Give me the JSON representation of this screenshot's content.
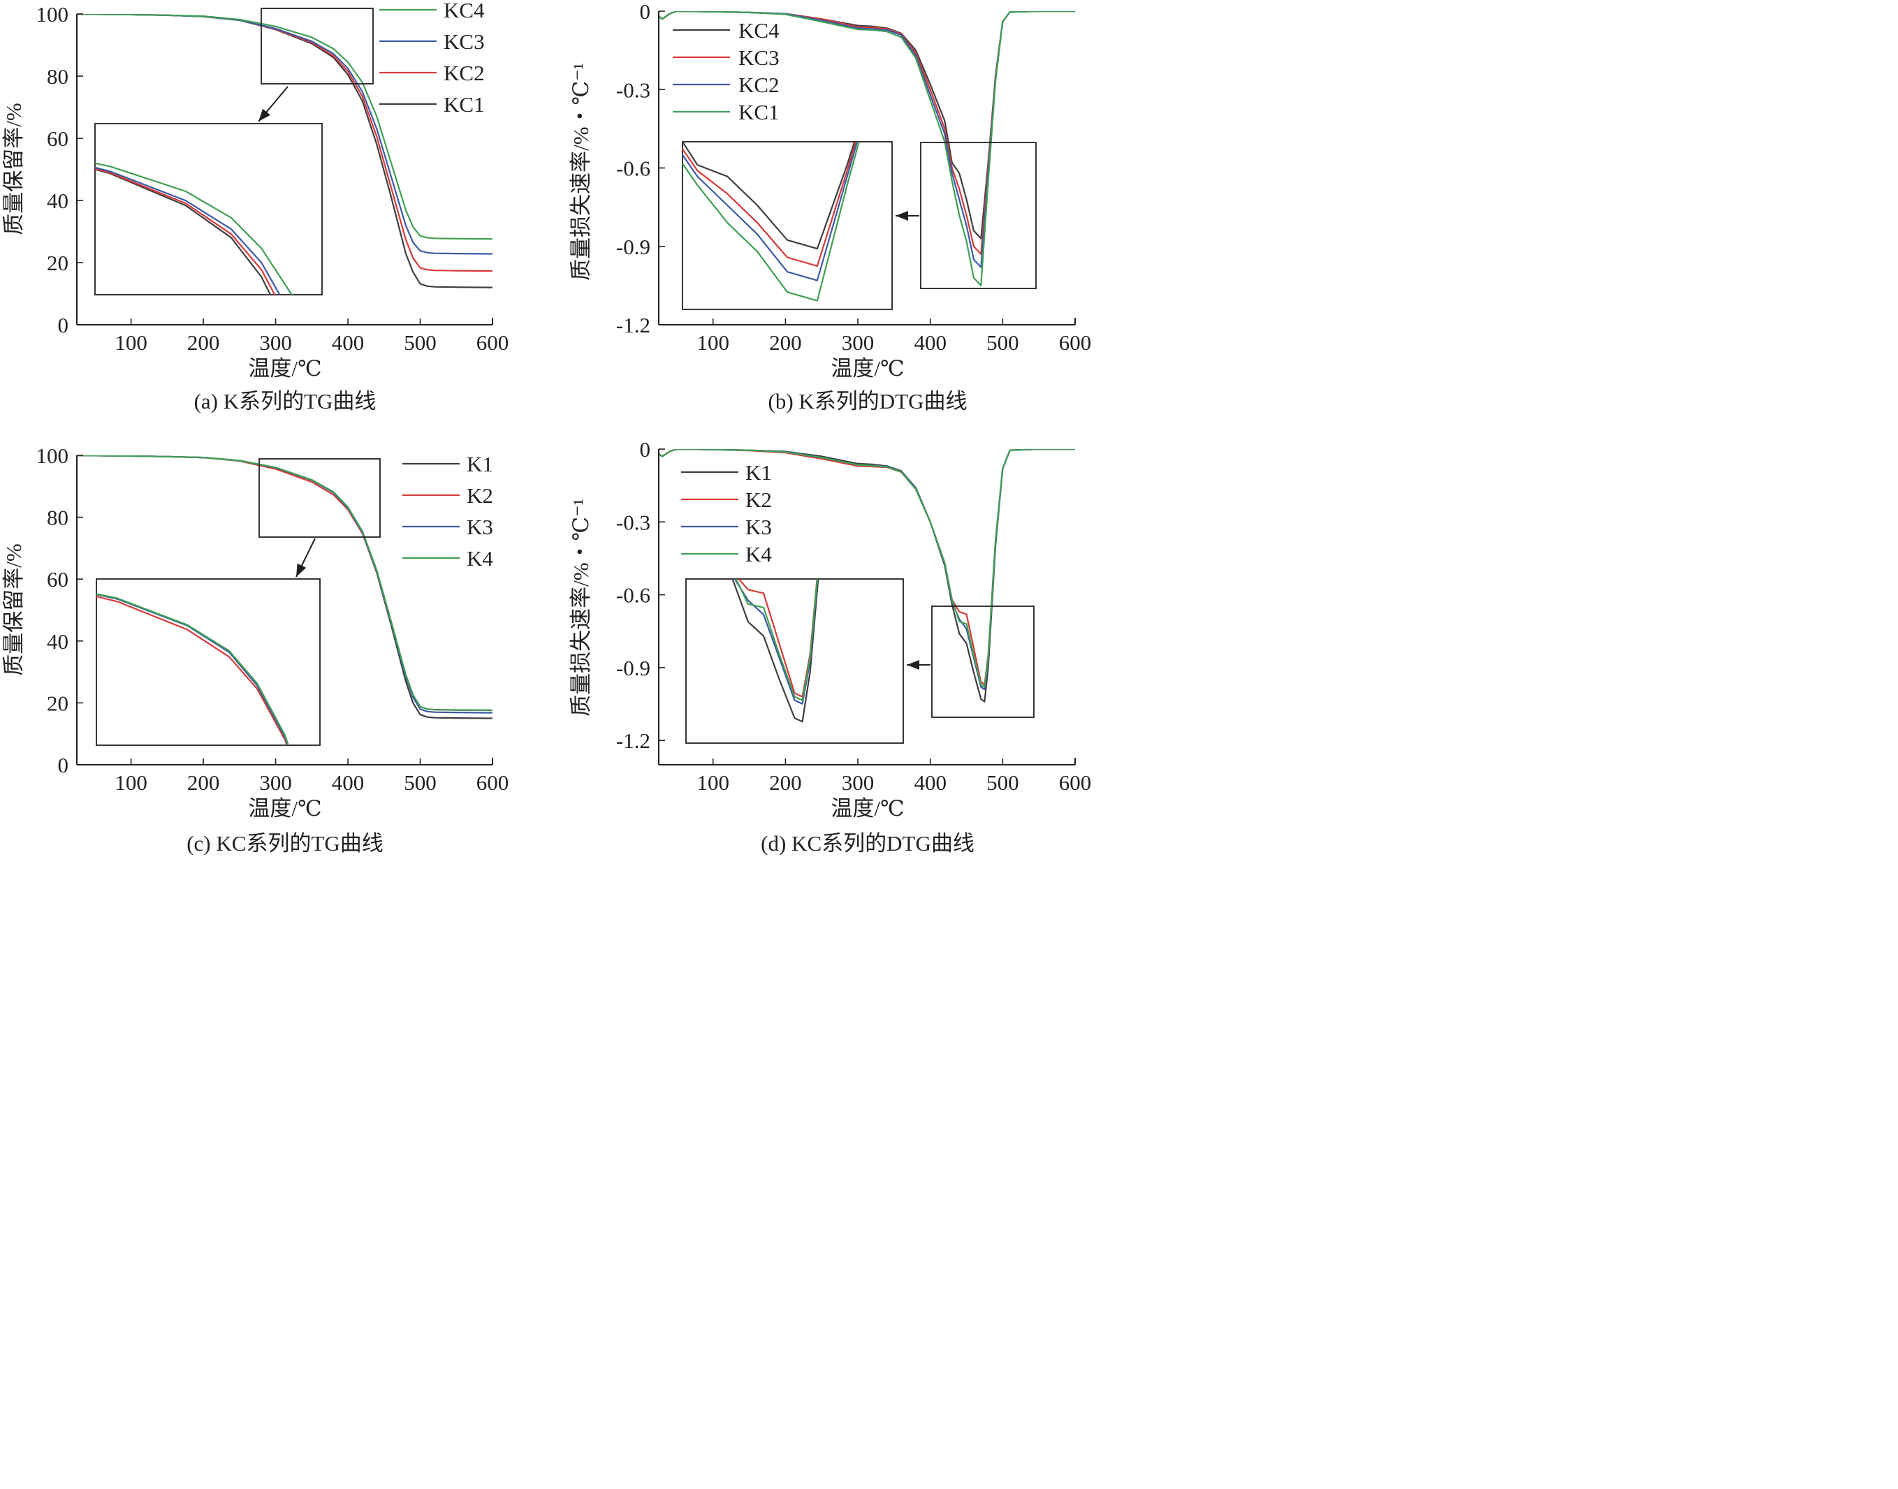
{
  "figure": {
    "background": "#ffffff",
    "ink": "#231f20"
  },
  "chart_data": [
    {
      "id": "a",
      "type": "line",
      "caption": "(a) K系列的TG曲线",
      "xlabel": "温度/℃",
      "ylabel": "质量保留率/%",
      "xlim": [
        25,
        600
      ],
      "ylim": [
        0,
        100
      ],
      "xticks": [
        100,
        200,
        300,
        400,
        500,
        600
      ],
      "yticks": [
        0,
        20,
        40,
        60,
        80,
        100
      ],
      "ytick_labels": [
        "0",
        "20",
        "40",
        "60",
        "80",
        "100"
      ],
      "legend_position": "top-right",
      "legend_order": [
        "KC4",
        "KC3",
        "KC2",
        "KC1"
      ],
      "grid": false,
      "inset": {
        "x_range": [
          290,
          440
        ],
        "y_range": [
          78,
          102
        ],
        "position": "center-left",
        "shows": "magnified view"
      },
      "series": [
        {
          "name": "KC1",
          "color": "#3f3f3f",
          "x": [
            25,
            50,
            100,
            150,
            200,
            250,
            300,
            350,
            380,
            400,
            420,
            440,
            460,
            480,
            490,
            500,
            510,
            520,
            550,
            600
          ],
          "y": [
            100,
            99.9,
            99.8,
            99.6,
            99.2,
            98.0,
            95.0,
            90.5,
            86.0,
            80.5,
            72.0,
            58.0,
            41.0,
            23.0,
            17.0,
            13.2,
            12.4,
            12.2,
            12.1,
            12.0
          ]
        },
        {
          "name": "KC2",
          "color": "#d93a3a",
          "x": [
            25,
            50,
            100,
            150,
            200,
            250,
            300,
            350,
            380,
            400,
            420,
            440,
            460,
            480,
            490,
            500,
            510,
            520,
            550,
            600
          ],
          "y": [
            100,
            99.9,
            99.8,
            99.6,
            99.2,
            98.0,
            95.1,
            90.8,
            86.5,
            81.5,
            73.5,
            60.5,
            44.0,
            27.5,
            21.5,
            18.3,
            17.7,
            17.5,
            17.4,
            17.3
          ]
        },
        {
          "name": "KC3",
          "color": "#3c5aa6",
          "x": [
            25,
            50,
            100,
            150,
            200,
            250,
            300,
            350,
            380,
            400,
            420,
            440,
            460,
            480,
            490,
            500,
            510,
            520,
            550,
            600
          ],
          "y": [
            100,
            99.9,
            99.8,
            99.6,
            99.2,
            98.0,
            95.3,
            91.2,
            87.2,
            82.5,
            75.0,
            63.0,
            47.5,
            32.0,
            26.5,
            23.8,
            23.2,
            23.0,
            22.9,
            22.8
          ]
        },
        {
          "name": "KC4",
          "color": "#3f9f55",
          "x": [
            25,
            50,
            100,
            150,
            200,
            250,
            300,
            350,
            380,
            400,
            420,
            440,
            460,
            480,
            490,
            500,
            510,
            520,
            550,
            600
          ],
          "y": [
            100,
            99.9,
            99.8,
            99.6,
            99.3,
            98.2,
            96.0,
            92.5,
            88.8,
            84.5,
            78.0,
            67.0,
            52.0,
            37.0,
            31.5,
            28.6,
            28.0,
            27.8,
            27.7,
            27.6
          ]
        }
      ]
    },
    {
      "id": "b",
      "type": "line",
      "caption": "(b) K系列的DTG曲线",
      "xlabel": "温度/℃",
      "ylabel": "质量损失速率/%・℃⁻¹",
      "xlim": [
        25,
        600
      ],
      "ylim": [
        -1.2,
        0
      ],
      "xticks": [
        100,
        200,
        300,
        400,
        500,
        600
      ],
      "yticks": [
        0,
        -0.3,
        -0.6,
        -0.9,
        -1.2
      ],
      "ytick_labels": [
        "0",
        "-0.3",
        "-0.6",
        "-0.9",
        "-1.2"
      ],
      "legend_position": "top-left",
      "legend_order": [
        "KC4",
        "KC3",
        "KC2",
        "KC1"
      ],
      "grid": false,
      "inset": {
        "x_range": [
          425,
          495
        ],
        "y_range": [
          -1.08,
          -0.5
        ],
        "position": "center-left",
        "shows": "magnified view"
      },
      "series": [
        {
          "name": "KC4",
          "color": "#3f3f3f",
          "x": [
            25,
            30,
            40,
            50,
            100,
            150,
            200,
            250,
            300,
            320,
            340,
            360,
            380,
            400,
            420,
            430,
            440,
            450,
            460,
            470,
            480,
            490,
            500,
            510,
            550,
            600
          ],
          "y": [
            -0.02,
            -0.03,
            -0.01,
            0,
            -0.002,
            -0.005,
            -0.01,
            -0.03,
            -0.055,
            -0.058,
            -0.065,
            -0.085,
            -0.15,
            -0.28,
            -0.42,
            -0.58,
            -0.62,
            -0.72,
            -0.84,
            -0.87,
            -0.58,
            -0.25,
            -0.04,
            -0.003,
            0,
            0
          ]
        },
        {
          "name": "KC3",
          "color": "#d93a3a",
          "x": [
            25,
            30,
            40,
            50,
            100,
            150,
            200,
            250,
            300,
            320,
            340,
            360,
            380,
            400,
            420,
            430,
            440,
            450,
            460,
            470,
            480,
            490,
            500,
            510,
            550,
            600
          ],
          "y": [
            -0.02,
            -0.03,
            -0.01,
            0,
            -0.002,
            -0.005,
            -0.01,
            -0.03,
            -0.06,
            -0.062,
            -0.068,
            -0.088,
            -0.16,
            -0.3,
            -0.45,
            -0.6,
            -0.68,
            -0.78,
            -0.9,
            -0.93,
            -0.6,
            -0.25,
            -0.04,
            -0.003,
            0,
            0
          ]
        },
        {
          "name": "KC2",
          "color": "#3c5aa6",
          "x": [
            25,
            30,
            40,
            50,
            100,
            150,
            200,
            250,
            300,
            320,
            340,
            360,
            380,
            400,
            420,
            430,
            440,
            450,
            460,
            470,
            480,
            490,
            500,
            510,
            550,
            600
          ],
          "y": [
            -0.02,
            -0.03,
            -0.01,
            0,
            -0.002,
            -0.005,
            -0.01,
            -0.035,
            -0.065,
            -0.068,
            -0.072,
            -0.092,
            -0.17,
            -0.32,
            -0.47,
            -0.62,
            -0.72,
            -0.82,
            -0.95,
            -0.98,
            -0.62,
            -0.26,
            -0.04,
            -0.003,
            0,
            0
          ]
        },
        {
          "name": "KC1",
          "color": "#3f9f55",
          "x": [
            25,
            30,
            40,
            50,
            100,
            150,
            200,
            250,
            300,
            320,
            340,
            360,
            380,
            400,
            420,
            430,
            440,
            450,
            460,
            470,
            480,
            490,
            500,
            510,
            550,
            600
          ],
          "y": [
            -0.02,
            -0.03,
            -0.01,
            0,
            -0.002,
            -0.005,
            -0.012,
            -0.04,
            -0.07,
            -0.072,
            -0.078,
            -0.1,
            -0.18,
            -0.34,
            -0.5,
            -0.65,
            -0.78,
            -0.88,
            -1.02,
            -1.05,
            -0.65,
            -0.27,
            -0.04,
            -0.003,
            0,
            0
          ]
        }
      ]
    },
    {
      "id": "c",
      "type": "line",
      "caption": "(c) KC系列的TG曲线",
      "xlabel": "温度/℃",
      "ylabel": "质量保留率/%",
      "xlim": [
        25,
        600
      ],
      "ylim": [
        0,
        100
      ],
      "xticks": [
        100,
        200,
        300,
        400,
        500,
        600
      ],
      "yticks": [
        0,
        20,
        40,
        60,
        80,
        100
      ],
      "ytick_labels": [
        "0",
        "20",
        "40",
        "60",
        "80",
        "100"
      ],
      "legend_position": "top-right",
      "legend_order": [
        "K1",
        "K2",
        "K3",
        "K4"
      ],
      "grid": false,
      "inset": {
        "x_range": [
          285,
          445
        ],
        "y_range": [
          74,
          99
        ],
        "position": "center-left",
        "shows": "magnified view"
      },
      "series": [
        {
          "name": "K1",
          "color": "#3f3f3f",
          "x": [
            25,
            50,
            100,
            150,
            200,
            250,
            300,
            350,
            380,
            400,
            420,
            440,
            460,
            480,
            490,
            500,
            510,
            520,
            550,
            600
          ],
          "y": [
            100,
            99.9,
            99.8,
            99.6,
            99.3,
            98.3,
            96.0,
            92.0,
            88.0,
            83.0,
            75.0,
            62.0,
            45.0,
            27.0,
            20.0,
            16.2,
            15.4,
            15.2,
            15.1,
            15.0
          ]
        },
        {
          "name": "K2",
          "color": "#d93a3a",
          "x": [
            25,
            50,
            100,
            150,
            200,
            250,
            300,
            350,
            380,
            400,
            420,
            440,
            460,
            480,
            490,
            500,
            510,
            520,
            550,
            600
          ],
          "y": [
            100,
            99.9,
            99.8,
            99.6,
            99.3,
            98.2,
            95.6,
            91.4,
            87.3,
            82.5,
            74.8,
            62.2,
            45.8,
            29.0,
            22.5,
            18.8,
            18.0,
            17.8,
            17.7,
            17.6
          ]
        },
        {
          "name": "K3",
          "color": "#3c5aa6",
          "x": [
            25,
            50,
            100,
            150,
            200,
            250,
            300,
            350,
            380,
            400,
            420,
            440,
            460,
            480,
            490,
            500,
            510,
            520,
            550,
            600
          ],
          "y": [
            100,
            99.9,
            99.8,
            99.6,
            99.3,
            98.3,
            96.0,
            92.0,
            88.0,
            83.0,
            75.2,
            62.4,
            45.8,
            28.5,
            21.8,
            18.0,
            17.2,
            17.0,
            16.9,
            16.8
          ]
        },
        {
          "name": "K4",
          "color": "#3f9f55",
          "x": [
            25,
            50,
            100,
            150,
            200,
            250,
            300,
            350,
            380,
            400,
            420,
            440,
            460,
            480,
            490,
            500,
            510,
            520,
            550,
            600
          ],
          "y": [
            100,
            99.9,
            99.8,
            99.6,
            99.3,
            98.3,
            96.1,
            92.1,
            88.2,
            83.3,
            75.5,
            62.8,
            46.2,
            29.2,
            22.6,
            18.8,
            18.0,
            17.8,
            17.7,
            17.6
          ]
        }
      ]
    },
    {
      "id": "d",
      "type": "line",
      "caption": "(d) KC系列的DTG曲线",
      "xlabel": "温度/℃",
      "ylabel": "质量损失速率/%・℃⁻¹",
      "xlim": [
        25,
        600
      ],
      "ylim": [
        -1.3,
        0
      ],
      "xticks": [
        100,
        200,
        300,
        400,
        500,
        600
      ],
      "yticks": [
        0,
        -0.3,
        -0.6,
        -0.9,
        -1.2
      ],
      "ytick_labels": [
        "0",
        "-0.3",
        "-0.6",
        "-0.9",
        "-1.2"
      ],
      "legend_position": "top-left",
      "legend_order": [
        "K1",
        "K2",
        "K3",
        "K4"
      ],
      "grid": false,
      "inset": {
        "x_range": [
          400,
          540
        ],
        "y_range": [
          -1.1,
          -0.64
        ],
        "position": "center-left",
        "shows": "magnified view"
      },
      "series": [
        {
          "name": "K1",
          "color": "#3f3f3f",
          "x": [
            25,
            30,
            40,
            50,
            100,
            150,
            200,
            250,
            300,
            320,
            340,
            360,
            380,
            400,
            420,
            430,
            440,
            450,
            460,
            470,
            475,
            480,
            490,
            500,
            510,
            550,
            600
          ],
          "y": [
            -0.02,
            -0.03,
            -0.01,
            0,
            -0.002,
            -0.005,
            -0.01,
            -0.03,
            -0.06,
            -0.063,
            -0.07,
            -0.09,
            -0.16,
            -0.3,
            -0.48,
            -0.64,
            -0.76,
            -0.8,
            -0.92,
            -1.03,
            -1.04,
            -0.9,
            -0.4,
            -0.08,
            -0.005,
            0,
            0
          ]
        },
        {
          "name": "K2",
          "color": "#d93a3a",
          "x": [
            25,
            30,
            40,
            50,
            100,
            150,
            200,
            250,
            300,
            320,
            340,
            360,
            380,
            400,
            420,
            430,
            440,
            450,
            460,
            470,
            475,
            480,
            490,
            500,
            510,
            550,
            600
          ],
          "y": [
            -0.02,
            -0.03,
            -0.01,
            0,
            -0.002,
            -0.006,
            -0.015,
            -0.04,
            -0.07,
            -0.072,
            -0.075,
            -0.095,
            -0.165,
            -0.3,
            -0.47,
            -0.62,
            -0.67,
            -0.68,
            -0.82,
            -0.96,
            -0.97,
            -0.85,
            -0.38,
            -0.08,
            -0.005,
            0,
            0
          ]
        },
        {
          "name": "K3",
          "color": "#3c5aa6",
          "x": [
            25,
            30,
            40,
            50,
            100,
            150,
            200,
            250,
            300,
            320,
            340,
            360,
            380,
            400,
            420,
            430,
            440,
            450,
            460,
            470,
            475,
            480,
            490,
            500,
            510,
            550,
            600
          ],
          "y": [
            -0.02,
            -0.03,
            -0.01,
            0,
            -0.002,
            -0.005,
            -0.01,
            -0.035,
            -0.065,
            -0.067,
            -0.072,
            -0.092,
            -0.16,
            -0.3,
            -0.47,
            -0.63,
            -0.7,
            -0.74,
            -0.86,
            -0.98,
            -0.99,
            -0.87,
            -0.39,
            -0.08,
            -0.005,
            0,
            0
          ]
        },
        {
          "name": "K4",
          "color": "#3f9f55",
          "x": [
            25,
            30,
            40,
            50,
            100,
            150,
            200,
            250,
            300,
            320,
            340,
            360,
            380,
            400,
            420,
            430,
            440,
            450,
            460,
            470,
            475,
            480,
            490,
            500,
            510,
            550,
            600
          ],
          "y": [
            -0.02,
            -0.03,
            -0.01,
            0,
            -0.002,
            -0.005,
            -0.012,
            -0.035,
            -0.065,
            -0.068,
            -0.074,
            -0.094,
            -0.165,
            -0.3,
            -0.47,
            -0.62,
            -0.71,
            -0.72,
            -0.85,
            -0.97,
            -0.98,
            -0.86,
            -0.38,
            -0.08,
            -0.005,
            0,
            0
          ]
        }
      ]
    }
  ]
}
